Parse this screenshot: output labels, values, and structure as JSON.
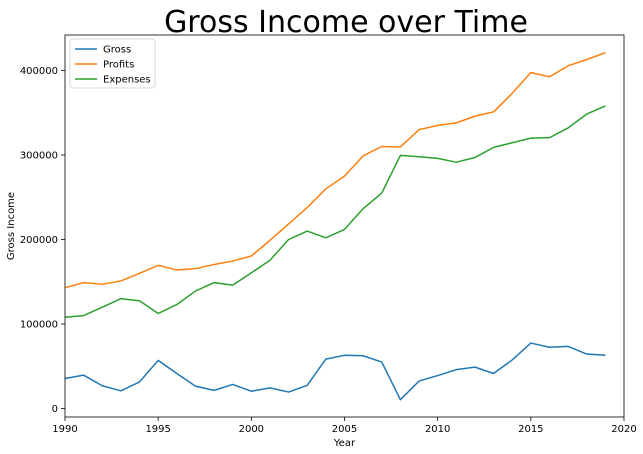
{
  "chart_data": {
    "type": "line",
    "title": "Gross Income over Time",
    "xlabel": "Year",
    "ylabel": "Gross Income",
    "xlim": [
      1990,
      2020
    ],
    "ylim": [
      -10000,
      442000
    ],
    "x_ticks": [
      1990,
      1995,
      2000,
      2005,
      2010,
      2015,
      2020
    ],
    "y_ticks": [
      0,
      100000,
      200000,
      300000,
      400000
    ],
    "legend_position": "top-left",
    "grid": false,
    "x": [
      1990,
      1991,
      1992,
      1993,
      1994,
      1995,
      1996,
      1997,
      1998,
      1999,
      2000,
      2001,
      2002,
      2003,
      2004,
      2005,
      2006,
      2007,
      2008,
      2009,
      2010,
      2011,
      2012,
      2013,
      2014,
      2015,
      2016,
      2017,
      2018,
      2019
    ],
    "series": [
      {
        "name": "Gross",
        "color": "#1f77b4",
        "values": [
          35500,
          39500,
          27000,
          21000,
          31500,
          57000,
          41500,
          26500,
          21500,
          28500,
          20500,
          24500,
          19500,
          27500,
          58500,
          63000,
          62500,
          55000,
          10500,
          32500,
          39000,
          46000,
          49000,
          41500,
          57500,
          77500,
          72500,
          73500,
          64500,
          63000
        ]
      },
      {
        "name": "Profits",
        "color": "#ff7f0e",
        "values": [
          143000,
          149000,
          147000,
          151000,
          160000,
          169500,
          164000,
          165500,
          170500,
          174500,
          180500,
          199000,
          218500,
          238000,
          260000,
          275000,
          299000,
          310000,
          309500,
          330000,
          335000,
          338000,
          346000,
          351000,
          373000,
          397500,
          392500,
          405500,
          413000,
          421000
        ]
      },
      {
        "name": "Expenses",
        "color": "#2ca02c",
        "values": [
          108000,
          110000,
          120000,
          130000,
          127500,
          112500,
          123000,
          139000,
          149000,
          146000,
          160500,
          175500,
          200000,
          210000,
          202000,
          212000,
          236500,
          255000,
          299500,
          298000,
          296000,
          291500,
          297000,
          309000,
          314500,
          320000,
          320500,
          332000,
          348500,
          358000
        ]
      }
    ]
  }
}
